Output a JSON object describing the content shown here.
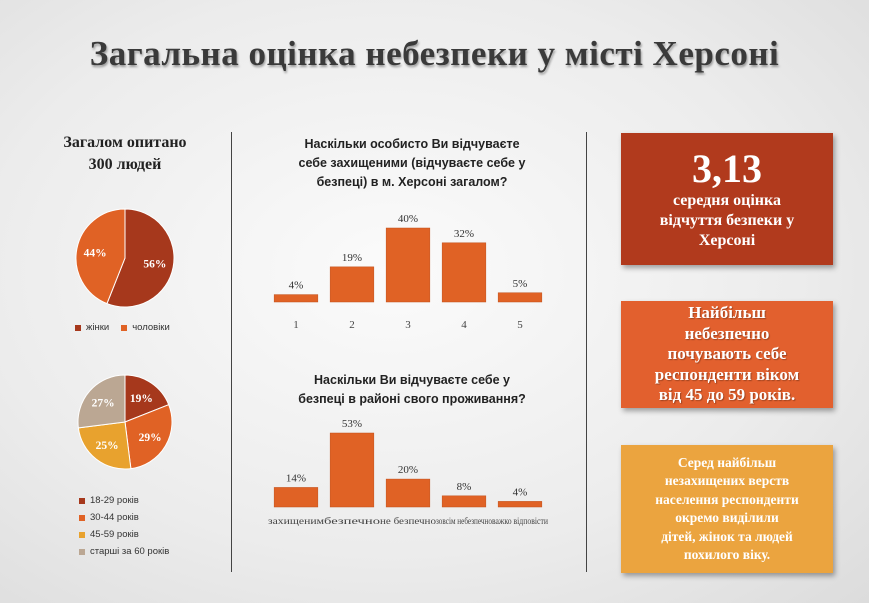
{
  "title": "Загальна оцінка небезпеки у місті Херсоні",
  "surveyed": [
    "Загалом опитано",
    "300 людей"
  ],
  "cards": {
    "mean_value": "3,13",
    "mean_text": [
      "середня оцінка",
      "відчуття безпеки у",
      "Херсоні"
    ],
    "age_text": [
      "Найбільш",
      "небезпечно",
      "почувають себе",
      "респонденти віком",
      "від 45 до 59 років."
    ],
    "vulnerable_text": [
      "Серед найбільш",
      "незахищених верств",
      "населення респонденти",
      "окремо виділили",
      "дітей, жінок та людей",
      "похилого віку."
    ]
  },
  "colors": {
    "dark_red": "#a6381c",
    "orange": "#e06225",
    "amber": "#e8a22e",
    "taupe": "#bba793",
    "card1": "#b13a1d",
    "card2": "#e2602e",
    "card3": "#eba43f"
  },
  "chart_data": [
    {
      "type": "pie",
      "labels": [
        "жінки",
        "чоловіки"
      ],
      "values": [
        56,
        44
      ],
      "data_labels": [
        "56%",
        "44%"
      ],
      "colors": [
        "#a6381c",
        "#e06225"
      ],
      "legend": "bottom"
    },
    {
      "type": "pie",
      "labels": [
        "18-29 років",
        "30-44 років",
        "45-59 років",
        "старші за 60 років"
      ],
      "values": [
        19,
        29,
        25,
        27
      ],
      "data_labels": [
        "19%",
        "29%",
        "25%",
        "27%"
      ],
      "colors": [
        "#a6381c",
        "#e06225",
        "#e8a22e",
        "#bba793"
      ],
      "legend": "bottom"
    },
    {
      "type": "bar",
      "title": [
        "Наскільки особисто Ви відчуваєте",
        "себе захищеними (відчуваєте себе у",
        "безпеці) в м. Херсоні загалом?"
      ],
      "categories": [
        "1",
        "2",
        "3",
        "4",
        "5"
      ],
      "values": [
        4,
        19,
        40,
        32,
        5
      ],
      "data_labels": [
        "4%",
        "19%",
        "40%",
        "32%",
        "5%"
      ],
      "ylim": [
        0,
        40
      ],
      "grid": false
    },
    {
      "type": "bar",
      "title": [
        "Наскільки Ви відчуваєте себе у",
        "безпеці в районі свого проживання?"
      ],
      "categories": [
        "захищеним",
        "безпечно",
        "не безпечно",
        "зовсім небезпечно",
        "важко відповісти"
      ],
      "values": [
        14,
        53,
        20,
        8,
        4
      ],
      "data_labels": [
        "14%",
        "53%",
        "20%",
        "8%",
        "4%"
      ],
      "ylim": [
        0,
        53
      ],
      "grid": false
    }
  ]
}
